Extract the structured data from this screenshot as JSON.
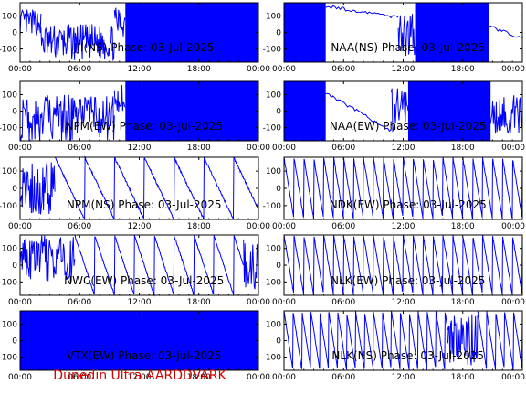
{
  "footer": "Dunedin Ultra AARDDVARK",
  "colors": {
    "trace": "#0000ff",
    "footer": "#d40000",
    "axes": "#000000"
  },
  "chart_data": [
    {
      "type": "line",
      "title": "JJI(NS) Phase: 03-Jul-2025",
      "ylim": [
        -180,
        180
      ],
      "yticks": [
        -100,
        0,
        100
      ],
      "xticks": [
        "00:00",
        "06:00",
        "12:00",
        "18:00",
        "00:00"
      ],
      "xlim_hours": [
        0,
        24
      ],
      "segments": [
        {
          "from": 0,
          "to": 2.1,
          "kind": "noisy",
          "level": 60,
          "amp": 80
        },
        {
          "from": 2.1,
          "to": 9.5,
          "kind": "noisy",
          "level": -60,
          "amp": 110
        },
        {
          "from": 9.5,
          "to": 10.6,
          "kind": "noisy",
          "level": 60,
          "amp": 90
        },
        {
          "from": 10.6,
          "to": 24,
          "kind": "dense"
        }
      ]
    },
    {
      "type": "line",
      "title": "NAA(NS) Phase: 03-Jul-2025",
      "ylim": [
        -180,
        180
      ],
      "yticks": [
        -100,
        0,
        100
      ],
      "xticks": [
        "00:00",
        "06:00",
        "12:00",
        "18:00",
        "00:00"
      ],
      "xlim_hours": [
        0,
        24
      ],
      "segments": [
        {
          "from": 0,
          "to": 4.2,
          "kind": "dense"
        },
        {
          "from": 4.2,
          "to": 11.5,
          "kind": "drift",
          "start": 160,
          "end": 90
        },
        {
          "from": 11.5,
          "to": 13.2,
          "kind": "noisy",
          "level": 0,
          "amp": 150
        },
        {
          "from": 13.2,
          "to": 20.6,
          "kind": "dense"
        },
        {
          "from": 20.6,
          "to": 24,
          "kind": "drift",
          "start": 40,
          "end": -40
        }
      ]
    },
    {
      "type": "line",
      "title": "NPM(EW) Phase: 03-Jul-2025",
      "ylim": [
        -180,
        180
      ],
      "yticks": [
        -100,
        0,
        100
      ],
      "xticks": [
        "00:00",
        "06:00",
        "12:00",
        "18:00",
        "00:00"
      ],
      "xlim_hours": [
        0,
        24
      ],
      "segments": [
        {
          "from": 0,
          "to": 9.5,
          "kind": "noisy",
          "level": -40,
          "amp": 140
        },
        {
          "from": 9.5,
          "to": 10.6,
          "kind": "noisy",
          "level": 60,
          "amp": 100
        },
        {
          "from": 10.6,
          "to": 24,
          "kind": "dense"
        }
      ]
    },
    {
      "type": "line",
      "title": "NAA(EW) Phase: 03-Jul-2025",
      "ylim": [
        -180,
        180
      ],
      "yticks": [
        -100,
        0,
        100
      ],
      "xticks": [
        "00:00",
        "06:00",
        "12:00",
        "18:00",
        "00:00"
      ],
      "xlim_hours": [
        0,
        24
      ],
      "segments": [
        {
          "from": 0,
          "to": 4.2,
          "kind": "dense"
        },
        {
          "from": 4.2,
          "to": 10.8,
          "kind": "drift",
          "start": 110,
          "end": -120
        },
        {
          "from": 10.8,
          "to": 12.5,
          "kind": "noisy",
          "level": 0,
          "amp": 150
        },
        {
          "from": 12.5,
          "to": 20.8,
          "kind": "dense"
        },
        {
          "from": 20.8,
          "to": 24,
          "kind": "noisy",
          "level": -20,
          "amp": 120
        }
      ]
    },
    {
      "type": "line",
      "title": "NPM(NS) Phase: 03-Jul-2025",
      "ylim": [
        -180,
        180
      ],
      "yticks": [
        -100,
        0,
        100
      ],
      "xticks": [
        "00:00",
        "06:00",
        "12:00",
        "18:00",
        "00:00"
      ],
      "xlim_hours": [
        0,
        24
      ],
      "segments": [
        {
          "from": 0,
          "to": 3.5,
          "kind": "noisy",
          "level": 0,
          "amp": 160
        },
        {
          "from": 3.5,
          "to": 24,
          "kind": "ramp",
          "period": 3.0,
          "dir": -1
        }
      ]
    },
    {
      "type": "line",
      "title": "NDK(EW) Phase: 03-Jul-2025",
      "ylim": [
        -180,
        180
      ],
      "yticks": [
        -100,
        0,
        100
      ],
      "xticks": [
        "00:00",
        "06:00",
        "12:00",
        "18:00",
        "00:00"
      ],
      "xlim_hours": [
        0,
        24
      ],
      "segments": [
        {
          "from": 0,
          "to": 24,
          "kind": "ramp",
          "period": 1.0,
          "dir": -1
        }
      ]
    },
    {
      "type": "line",
      "title": "NWC(EW) Phase: 03-Jul-2025",
      "ylim": [
        -180,
        180
      ],
      "yticks": [
        -100,
        0,
        100
      ],
      "xticks": [
        "00:00",
        "06:00",
        "12:00",
        "18:00",
        "00:00"
      ],
      "xlim_hours": [
        0,
        24
      ],
      "segments": [
        {
          "from": 0,
          "to": 5.5,
          "kind": "noisy",
          "level": 40,
          "amp": 140
        },
        {
          "from": 5.5,
          "to": 22.5,
          "kind": "ramp",
          "period": 2.0,
          "dir": -1
        },
        {
          "from": 22.5,
          "to": 24,
          "kind": "noisy",
          "level": 0,
          "amp": 170
        }
      ]
    },
    {
      "type": "line",
      "title": "NLK(EW) Phase: 03-Jul-2025",
      "ylim": [
        -180,
        180
      ],
      "yticks": [
        -100,
        0,
        100
      ],
      "xticks": [
        "00:00",
        "06:00",
        "12:00",
        "18:00",
        "00:00"
      ],
      "xlim_hours": [
        0,
        24
      ],
      "segments": [
        {
          "from": 0,
          "to": 24,
          "kind": "ramp",
          "period": 1.0,
          "dir": -1
        }
      ]
    },
    {
      "type": "line",
      "title": "VTX(EW) Phase: 03-Jul-2025",
      "ylim": [
        -180,
        180
      ],
      "yticks": [
        -100,
        0,
        100
      ],
      "xticks": [
        "00:00",
        "06:00",
        "12:00",
        "18:00",
        "00:00"
      ],
      "xlim_hours": [
        0,
        24
      ],
      "segments": [
        {
          "from": 0,
          "to": 24,
          "kind": "dense"
        }
      ]
    },
    {
      "type": "line",
      "title": "NLK(NS) Phase: 03-Jul-2025",
      "ylim": [
        -180,
        180
      ],
      "yticks": [
        -100,
        0,
        100
      ],
      "xticks": [
        "00:00",
        "06:00",
        "12:00",
        "18:00",
        "00:00"
      ],
      "xlim_hours": [
        0,
        24
      ],
      "segments": [
        {
          "from": 0,
          "to": 16.5,
          "kind": "ramp",
          "period": 0.9,
          "dir": -1
        },
        {
          "from": 16.5,
          "to": 19.5,
          "kind": "noisy",
          "level": 0,
          "amp": 170
        },
        {
          "from": 19.5,
          "to": 24,
          "kind": "ramp",
          "period": 0.9,
          "dir": -1
        }
      ]
    }
  ]
}
